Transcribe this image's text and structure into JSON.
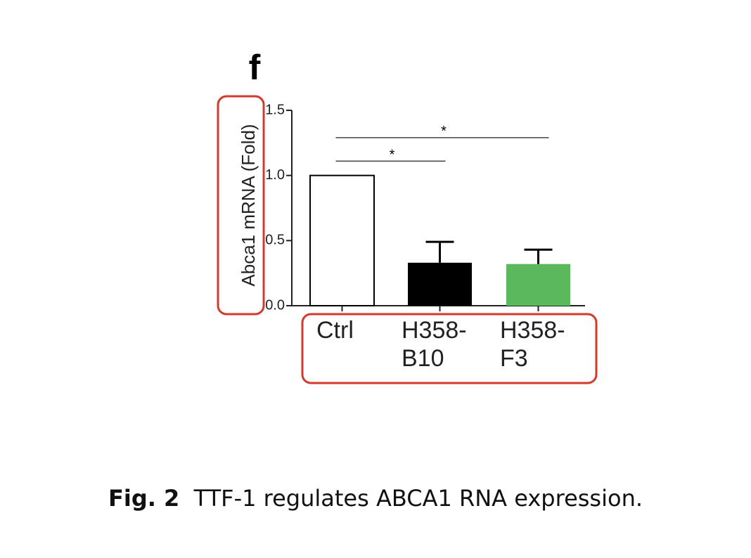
{
  "panel_label": "f",
  "chart_data": {
    "type": "bar",
    "y_label": "Abca1 mRNA (Fold)",
    "categories": [
      "Ctrl",
      "H358-\nB10",
      "H358-\nF3"
    ],
    "values": [
      1.0,
      0.33,
      0.32
    ],
    "errors": [
      null,
      0.16,
      0.11
    ],
    "colors": [
      "#ffffff",
      "#000000",
      "#5cb85c"
    ],
    "ylim": [
      0,
      1.5
    ],
    "yticks": [
      {
        "value": 0,
        "label": "0.0"
      },
      0.5,
      {
        "value": 1,
        "label": "1.0"
      },
      1.5
    ],
    "significance": [
      {
        "label": "*",
        "from": 0,
        "to": 1,
        "y": 1.11
      },
      {
        "label": "*",
        "from": 0,
        "to": 2,
        "y": 1.29
      }
    ]
  },
  "caption": {
    "label": "Fig. 2",
    "text": "TTF-1 regulates ABCA1 RNA expression."
  }
}
